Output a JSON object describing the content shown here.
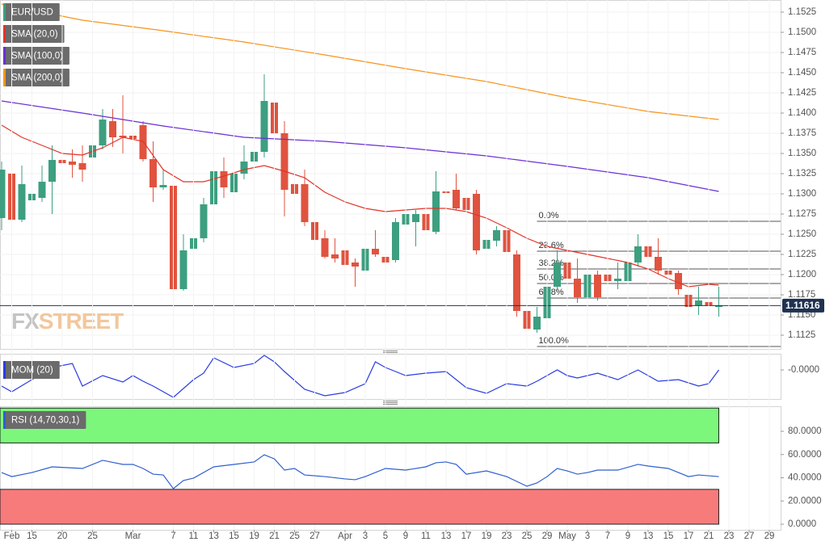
{
  "chart_data": [
    {
      "type": "candlestick",
      "xlim": [
        -0.16,
        77.12
      ],
      "ylim": [
        1.1108,
        1.154
      ],
      "yticks": [
        1.1525,
        {
          "value": 1.15,
          "label": "1.1500"
        },
        1.1475,
        {
          "value": 1.145,
          "label": "1.1450"
        },
        1.1425,
        {
          "value": 1.14,
          "label": "1.1400"
        },
        1.1375,
        {
          "value": 1.135,
          "label": "1.1350"
        },
        1.1325,
        {
          "value": 1.13,
          "label": "1.1300"
        },
        1.1275,
        {
          "value": 1.125,
          "label": "1.1250"
        },
        1.1225,
        {
          "value": 1.12,
          "label": "1.1200"
        },
        1.1175,
        {
          "value": 1.115,
          "label": "1.1150"
        },
        1.1125
      ],
      "grid": true,
      "watermark": [
        "FX",
        "STREET"
      ],
      "series": [
        {
          "name": "EUR/USD",
          "type": "candlestick",
          "color": "#3d9f80",
          "color_down": "#e0533f",
          "open": [
            1.127,
            1.1325,
            1.1268,
            1.1292,
            1.1295,
            1.1315,
            1.1342,
            1.134,
            1.1338,
            1.1345,
            1.136,
            1.139,
            1.1372,
            1.1372,
            1.1385,
            1.1343,
            1.1308,
            1.131,
            1.1182,
            1.1232,
            1.1245,
            1.1287,
            1.1328,
            1.1302,
            1.1325,
            1.134,
            1.1352,
            1.1413,
            1.1375,
            1.1312,
            1.1312,
            1.1265,
            1.1245,
            1.1225,
            1.123,
            1.1215,
            1.1205,
            1.1232,
            1.1222,
            1.1218,
            1.1262,
            1.1265,
            1.1275,
            1.1253,
            1.1303,
            1.1305,
            1.1295,
            1.13,
            1.1232,
            1.1242,
            1.1255,
            1.1225,
            1.1155,
            1.1132,
            1.1146,
            1.1185,
            1.1215,
            1.1195,
            1.1172,
            1.12,
            1.12,
            1.1192,
            1.1192,
            1.1215,
            1.1235,
            1.1222,
            1.1205,
            1.1202,
            1.1175,
            1.1162,
            1.1166,
            1.116
          ],
          "high": [
            1.134,
            1.1335,
            1.1335,
            1.1315,
            1.1335,
            1.136,
            1.137,
            1.1355,
            1.136,
            1.137,
            1.1405,
            1.1405,
            1.1422,
            1.141,
            1.139,
            1.1365,
            1.133,
            1.1325,
            1.125,
            1.1255,
            1.1295,
            1.1345,
            1.1345,
            1.135,
            1.136,
            1.1375,
            1.1448,
            1.144,
            1.139,
            1.1335,
            1.133,
            1.1275,
            1.1255,
            1.1245,
            1.125,
            1.122,
            1.125,
            1.1255,
            1.1245,
            1.127,
            1.1285,
            1.128,
            1.1285,
            1.1328,
            1.1315,
            1.1325,
            1.1325,
            1.1305,
            1.125,
            1.126,
            1.126,
            1.123,
            1.1162,
            1.116,
            1.1195,
            1.123,
            1.1265,
            1.122,
            1.1215,
            1.1205,
            1.121,
            1.1215,
            1.125,
            1.125,
            1.1263,
            1.1245,
            1.1222,
            1.1205,
            1.1185,
            1.1185,
            1.1185,
            1.1185
          ],
          "low": [
            1.1255,
            1.1265,
            1.1265,
            1.1235,
            1.129,
            1.1275,
            1.1325,
            1.132,
            1.1315,
            1.133,
            1.1355,
            1.1358,
            1.135,
            1.1355,
            1.134,
            1.129,
            1.1305,
            1.1175,
            1.118,
            1.1225,
            1.124,
            1.1282,
            1.1295,
            1.1298,
            1.1318,
            1.133,
            1.1345,
            1.137,
            1.1272,
            1.129,
            1.126,
            1.124,
            1.122,
            1.1215,
            1.1208,
            1.1185,
            1.1202,
            1.1222,
            1.1208,
            1.1215,
            1.1255,
            1.1235,
            1.125,
            1.125,
            1.1298,
            1.128,
            1.1278,
            1.1225,
            1.1228,
            1.1235,
            1.1222,
            1.1148,
            1.112,
            1.1128,
            1.1143,
            1.118,
            1.119,
            1.1165,
            1.1135,
            1.1168,
            1.1188,
            1.1182,
            1.1182,
            1.121,
            1.1218,
            1.12,
            1.1195,
            1.1175,
            1.1153,
            1.115,
            1.1142,
            1.1148
          ],
          "close": [
            1.133,
            1.1268,
            1.1312,
            1.13,
            1.1315,
            1.1342,
            1.1338,
            1.1336,
            1.133,
            1.136,
            1.1392,
            1.137,
            1.137,
            1.1368,
            1.1343,
            1.1308,
            1.1311,
            1.1182,
            1.123,
            1.1245,
            1.1287,
            1.1328,
            1.1308,
            1.1325,
            1.134,
            1.1352,
            1.1415,
            1.1375,
            1.1305,
            1.13,
            1.1265,
            1.1243,
            1.1222,
            1.122,
            1.1212,
            1.121,
            1.1232,
            1.1225,
            1.1215,
            1.1265,
            1.1275,
            1.1275,
            1.1255,
            1.1303,
            1.1301,
            1.1282,
            1.128,
            1.123,
            1.1243,
            1.1255,
            1.1228,
            1.1155,
            1.1133,
            1.1148,
            1.1185,
            1.1215,
            1.1195,
            1.1172,
            1.12,
            1.1172,
            1.1192,
            1.1195,
            1.1215,
            1.1235,
            1.1222,
            1.1205,
            1.12,
            1.1182,
            1.116,
            1.1168,
            1.1162,
            1.11616
          ]
        },
        {
          "name": "SMA (20,0)",
          "type": "line",
          "color": "#e0342a",
          "x": [
            0,
            2,
            4,
            6,
            8,
            10,
            12,
            14,
            16,
            18,
            20,
            22,
            24,
            26,
            28,
            30,
            32,
            34,
            36,
            38,
            40,
            42,
            44,
            46,
            48,
            50,
            52,
            54,
            56,
            58,
            60,
            62,
            64,
            66,
            68,
            70,
            71
          ],
          "values": [
            1.1385,
            1.137,
            1.136,
            1.135,
            1.1348,
            1.1357,
            1.137,
            1.1365,
            1.133,
            1.1315,
            1.1315,
            1.1322,
            1.133,
            1.1335,
            1.1328,
            1.132,
            1.1302,
            1.129,
            1.1282,
            1.1278,
            1.128,
            1.1282,
            1.1282,
            1.1278,
            1.127,
            1.1258,
            1.1245,
            1.1235,
            1.123,
            1.1225,
            1.122,
            1.1215,
            1.1207,
            1.1195,
            1.1185,
            1.1188,
            1.1187
          ]
        },
        {
          "name": "SMA (100,0)",
          "type": "line",
          "color": "#6a2fd4",
          "x": [
            0,
            8,
            16,
            24,
            32,
            40,
            48,
            56,
            64,
            71
          ],
          "values": [
            1.1415,
            1.14,
            1.1384,
            1.137,
            1.1365,
            1.1357,
            1.1347,
            1.1334,
            1.132,
            1.1303
          ]
        },
        {
          "name": "SMA (200,0)",
          "type": "line",
          "color": "#f7941d",
          "x": [
            0,
            8,
            16,
            24,
            32,
            40,
            48,
            56,
            64,
            71
          ],
          "values": [
            1.1535,
            1.1515,
            1.1502,
            1.1488,
            1.1472,
            1.1455,
            1.1439,
            1.1419,
            1.1402,
            1.1392
          ]
        }
      ],
      "fibonacci": {
        "x": 53,
        "levels": [
          {
            "label": "0.0%",
            "value": 1.1266
          },
          {
            "label": "23.6%",
            "value": 1.1229
          },
          {
            "label": "38.2%",
            "value": 1.1207
          },
          {
            "label": "50.0%",
            "value": 1.1189
          },
          {
            "label": "61.8%",
            "value": 1.1171
          },
          {
            "label": "100.0%",
            "value": 1.1111
          }
        ]
      }
    },
    {
      "type": "line",
      "xlim": [
        -0.16,
        77.12
      ],
      "ylim": [
        -0.0036,
        0.002
      ],
      "yticks": [
        {
          "value": 0,
          "label": "-0.0000"
        }
      ],
      "series": [
        {
          "name": "MOM (20)",
          "type": "line",
          "color": "#2a3ce0",
          "x": [
            0,
            1,
            3,
            5,
            7,
            8,
            10,
            12,
            13,
            14,
            15,
            17,
            19,
            20,
            21,
            23,
            25,
            26,
            27,
            28,
            30,
            32,
            34,
            36,
            37,
            38,
            39,
            40,
            42,
            44,
            46,
            48,
            50,
            52,
            53,
            55,
            56,
            57,
            59,
            61,
            63,
            65,
            67,
            69,
            70,
            71
          ],
          "values": [
            -0.002,
            -0.0027,
            -0.0012,
            0.0003,
            0.0008,
            -0.002,
            -0.0007,
            -0.0015,
            -0.0007,
            -0.0014,
            -0.002,
            -0.0034,
            -0.0012,
            -0.0004,
            0.0015,
            0.0003,
            0.0008,
            0.0018,
            0.001,
            -0.0002,
            -0.0024,
            -0.0032,
            -0.0028,
            -0.0017,
            0.001,
            0.0003,
            -0.0002,
            -0.0007,
            -0.0004,
            -0.0002,
            -0.0022,
            -0.0029,
            -0.0017,
            -0.002,
            -0.0014,
            0,
            -0.0007,
            -0.001,
            -0.0004,
            -0.0012,
            0,
            -0.0014,
            -0.0012,
            -0.002,
            -0.0017,
            0
          ]
        }
      ]
    },
    {
      "type": "line",
      "xlim": [
        -0.16,
        77.12
      ],
      "ylim": [
        -4.87,
        101.57
      ],
      "yticks": [
        {
          "value": 80,
          "label": "80.0000"
        },
        {
          "value": 60,
          "label": "60.0000"
        },
        {
          "value": 40,
          "label": "40.0000"
        },
        {
          "value": 20,
          "label": "20.0000"
        },
        {
          "value": 0,
          "label": "0.0000"
        }
      ],
      "xticks": [
        {
          "value": 1,
          "label": "Feb"
        },
        {
          "value": 3,
          "label": "15"
        },
        {
          "value": 6,
          "label": "20"
        },
        {
          "value": 9,
          "label": "25"
        },
        {
          "value": 13,
          "label": "Mar"
        },
        {
          "value": 17,
          "label": "7"
        },
        {
          "value": 19,
          "label": "11"
        },
        {
          "value": 21,
          "label": "13"
        },
        {
          "value": 23,
          "label": "15"
        },
        {
          "value": 25,
          "label": "19"
        },
        {
          "value": 27,
          "label": "21"
        },
        {
          "value": 29,
          "label": "25"
        },
        {
          "value": 31,
          "label": "27"
        },
        {
          "value": 34,
          "label": "Apr"
        },
        {
          "value": 36,
          "label": "3"
        },
        {
          "value": 38,
          "label": "5"
        },
        {
          "value": 40,
          "label": "9"
        },
        {
          "value": 42,
          "label": "11"
        },
        {
          "value": 44,
          "label": "13"
        },
        {
          "value": 46,
          "label": "17"
        },
        {
          "value": 48,
          "label": "19"
        },
        {
          "value": 50,
          "label": "23"
        },
        {
          "value": 52,
          "label": "25"
        },
        {
          "value": 54,
          "label": "29"
        },
        {
          "value": 56,
          "label": "May"
        },
        {
          "value": 58,
          "label": "3"
        },
        {
          "value": 60,
          "label": "7"
        },
        {
          "value": 62,
          "label": "9"
        },
        {
          "value": 64,
          "label": "13"
        },
        {
          "value": 66,
          "label": "15"
        },
        {
          "value": 68,
          "label": "17"
        },
        {
          "value": 70,
          "label": "21"
        },
        {
          "value": 72,
          "label": "23"
        },
        {
          "value": 74,
          "label": "27"
        },
        {
          "value": 76,
          "label": "29"
        }
      ],
      "bands": [
        {
          "from": 70,
          "to": 100,
          "color": "#7cf77c"
        },
        {
          "from": 0,
          "to": 30,
          "color": "#f77b7b"
        }
      ],
      "series": [
        {
          "name": "RSI (14,70,30,1)",
          "type": "line",
          "color": "#2f5fd0",
          "x": [
            0,
            1,
            3,
            5,
            8,
            10,
            12,
            13,
            14,
            15,
            16,
            17,
            18,
            19,
            21,
            23,
            25,
            26,
            27,
            28,
            29,
            30,
            32,
            34,
            35,
            36,
            38,
            40,
            42,
            43,
            44,
            45,
            46,
            48,
            50,
            52,
            53,
            54,
            55,
            56,
            57,
            58,
            59,
            61,
            63,
            64,
            66,
            68,
            69,
            71
          ],
          "values": [
            44.5,
            41.0,
            44.5,
            49.4,
            48.0,
            55.0,
            51.5,
            51.5,
            48.0,
            43.1,
            42.4,
            30.6,
            37.6,
            39.7,
            49.4,
            51.5,
            53.6,
            59.8,
            56.3,
            46.6,
            48.0,
            42.4,
            41.0,
            39.0,
            38.3,
            41.0,
            48.0,
            46.6,
            49.4,
            52.9,
            53.6,
            51.5,
            43.1,
            45.9,
            41.0,
            32.7,
            35.5,
            41.0,
            48.0,
            45.9,
            43.1,
            44.5,
            46.6,
            46.6,
            51.5,
            50.1,
            48.0,
            41.0,
            42.4,
            41.0
          ]
        }
      ]
    }
  ]
}
